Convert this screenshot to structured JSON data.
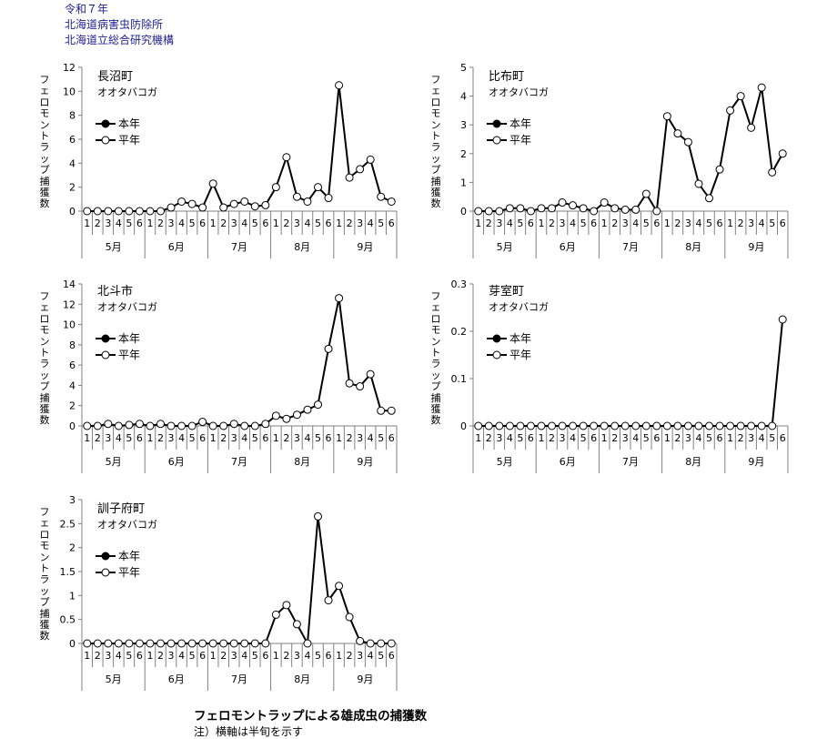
{
  "header": {
    "line1": "令和７年",
    "line2": "北海道病害虫防除所",
    "line3": "北海道立総合研究機構"
  },
  "y_axis_title": "フェロモントラップ捕獲数",
  "legend": {
    "this_year": "本年",
    "normal_year": "平年"
  },
  "footer": {
    "title": "フェロモントラップによる雄成虫の捕獲数",
    "note": "注）横軸は半旬を示す"
  },
  "colors": {
    "line": "#000000",
    "axis": "#808080",
    "header_text": "#1f1f8f"
  },
  "chart_data": [
    {
      "type": "line",
      "location": "長沼町",
      "species": "オオタバコガ",
      "yticks": [
        "0",
        "2",
        "4",
        "6",
        "8",
        "10",
        "12"
      ],
      "ylim": [
        0,
        12
      ],
      "months": [
        "5月",
        "6月",
        "7月",
        "8月",
        "9月"
      ],
      "pentads": [
        "1",
        "2",
        "3",
        "4",
        "5",
        "6"
      ],
      "series": [
        {
          "name": "平年",
          "values": [
            0,
            0,
            0,
            0,
            0,
            0,
            0,
            0,
            0.3,
            0.8,
            0.6,
            0.3,
            2.3,
            0.3,
            0.6,
            0.8,
            0.4,
            0.5,
            2.0,
            4.5,
            1.2,
            0.8,
            2.0,
            1.1,
            10.5,
            2.8,
            3.5,
            4.3,
            1.2,
            0.8
          ]
        }
      ]
    },
    {
      "type": "line",
      "location": "比布町",
      "species": "オオタバコガ",
      "yticks": [
        "0",
        "1",
        "2",
        "3",
        "4",
        "5"
      ],
      "ylim": [
        0,
        5
      ],
      "months": [
        "5月",
        "6月",
        "7月",
        "8月",
        "9月"
      ],
      "pentads": [
        "1",
        "2",
        "3",
        "4",
        "5",
        "6"
      ],
      "series": [
        {
          "name": "平年",
          "values": [
            0,
            0,
            0,
            0.1,
            0.1,
            0,
            0.1,
            0.1,
            0.3,
            0.2,
            0.1,
            0,
            0.3,
            0.1,
            0.05,
            0.05,
            0.6,
            0,
            3.3,
            2.7,
            2.4,
            0.95,
            0.45,
            1.45,
            3.5,
            4.0,
            2.9,
            4.3,
            1.35,
            2.0
          ]
        }
      ]
    },
    {
      "type": "line",
      "location": "北斗市",
      "species": "オオタバコガ",
      "yticks": [
        "0",
        "2",
        "4",
        "6",
        "8",
        "10",
        "12",
        "14"
      ],
      "ylim": [
        0,
        14
      ],
      "months": [
        "5月",
        "6月",
        "7月",
        "8月",
        "9月"
      ],
      "pentads": [
        "1",
        "2",
        "3",
        "4",
        "5",
        "6"
      ],
      "series": [
        {
          "name": "平年",
          "values": [
            0,
            0,
            0.2,
            0,
            0.1,
            0.2,
            0,
            0.2,
            0,
            0,
            0,
            0.4,
            0,
            0,
            0.2,
            0,
            0,
            0.2,
            1.0,
            0.7,
            1.1,
            1.6,
            2.1,
            7.6,
            12.6,
            4.2,
            3.9,
            5.1,
            1.5,
            1.5
          ]
        }
      ]
    },
    {
      "type": "line",
      "location": "芽室町",
      "species": "オオタバコガ",
      "yticks": [
        "0",
        "0.1",
        "0.2",
        "0.3"
      ],
      "ylim": [
        0,
        0.3
      ],
      "months": [
        "5月",
        "6月",
        "7月",
        "8月",
        "9月"
      ],
      "pentads": [
        "1",
        "2",
        "3",
        "4",
        "5",
        "6"
      ],
      "series": [
        {
          "name": "平年",
          "values": [
            0,
            0,
            0,
            0,
            0,
            0,
            0,
            0,
            0,
            0,
            0,
            0,
            0,
            0,
            0,
            0,
            0,
            0,
            0,
            0,
            0,
            0,
            0,
            0,
            0,
            0,
            0,
            0,
            0,
            0.225
          ]
        }
      ]
    },
    {
      "type": "line",
      "location": "訓子府町",
      "species": "オオタバコガ",
      "yticks": [
        "0",
        "0.5",
        "1",
        "1.5",
        "2",
        "2.5",
        "3"
      ],
      "ylim": [
        0,
        3
      ],
      "months": [
        "5月",
        "6月",
        "7月",
        "8月",
        "9月"
      ],
      "pentads": [
        "1",
        "2",
        "3",
        "4",
        "5",
        "6"
      ],
      "series": [
        {
          "name": "平年",
          "values": [
            0,
            0,
            0,
            0,
            0,
            0,
            0,
            0,
            0,
            0,
            0,
            0,
            0,
            0,
            0,
            0,
            0,
            0,
            0.6,
            0.8,
            0.4,
            0,
            2.65,
            0.9,
            1.2,
            0.55,
            0.05,
            0,
            0,
            0
          ]
        }
      ]
    }
  ]
}
